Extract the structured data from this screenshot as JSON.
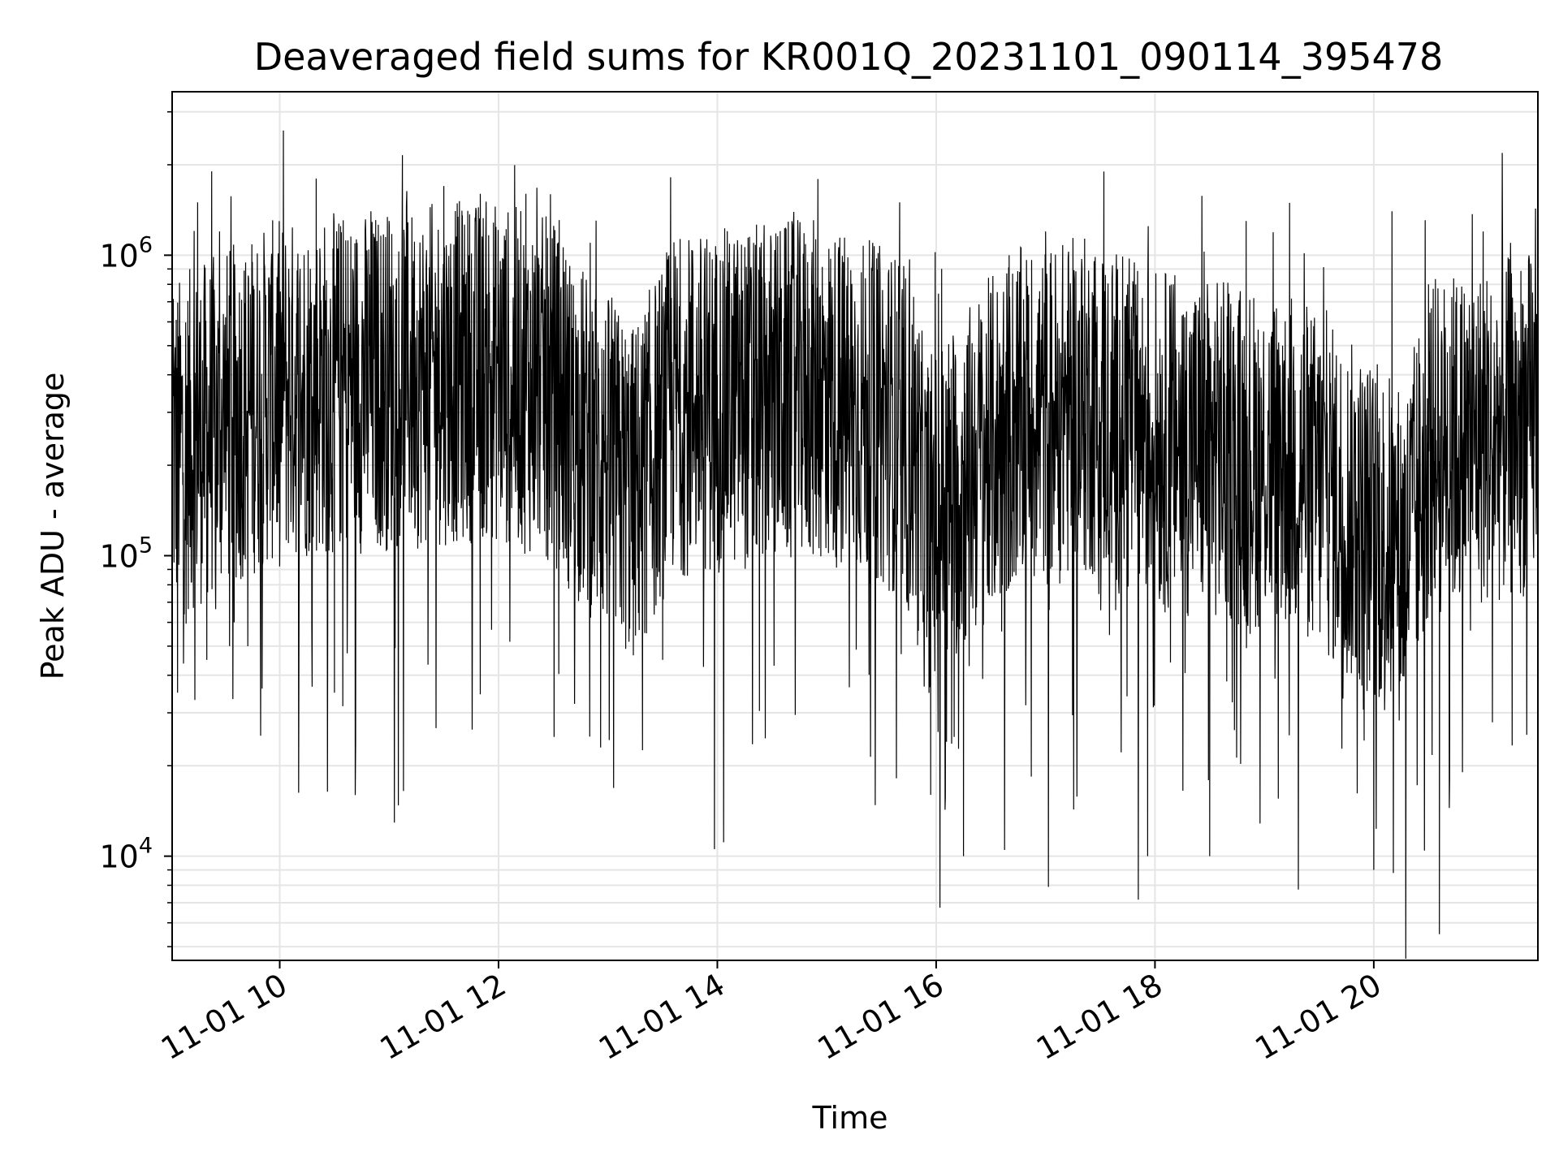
{
  "chart_data": {
    "type": "line",
    "title": "Deaveraged field sums for KR001Q_20231101_090114_395478",
    "xlabel": "Time",
    "ylabel": "Peak ADU - average",
    "yscale": "log",
    "ylim": [
      4500,
      3500000
    ],
    "xlim": [
      "2023-11-01 09:01",
      "2023-11-01 21:30"
    ],
    "grid": true,
    "line_color": "#000000",
    "grid_color": "#e5e5e5",
    "x_ticks": [
      {
        "x": "2023-11-01 10:00",
        "label": "11-01 10"
      },
      {
        "x": "2023-11-01 12:00",
        "label": "11-01 12"
      },
      {
        "x": "2023-11-01 14:00",
        "label": "11-01 14"
      },
      {
        "x": "2023-11-01 16:00",
        "label": "11-01 16"
      },
      {
        "x": "2023-11-01 18:00",
        "label": "11-01 18"
      },
      {
        "x": "2023-11-01 20:00",
        "label": "11-01 20"
      }
    ],
    "y_ticks": [
      {
        "y": 10000,
        "base": "10",
        "exp": "4"
      },
      {
        "y": 100000,
        "base": "10",
        "exp": "5"
      },
      {
        "y": 1000000,
        "base": "10",
        "exp": "6"
      }
    ],
    "series": [
      {
        "x": [
          "2023-11-01 09:01",
          "2023-11-01 09:04",
          "2023-11-01 09:10",
          "2023-11-01 09:15",
          "2023-11-01 09:20",
          "2023-11-01 09:27",
          "2023-11-01 09:35",
          "2023-11-01 09:45",
          "2023-11-01 09:55",
          "2023-11-01 10:02",
          "2023-11-01 10:10",
          "2023-11-01 10:20",
          "2023-11-01 10:30",
          "2023-11-01 10:40",
          "2023-11-01 10:50",
          "2023-11-01 11:00",
          "2023-11-01 11:15",
          "2023-11-01 11:30",
          "2023-11-01 11:40",
          "2023-11-01 11:50",
          "2023-11-01 12:00",
          "2023-11-01 12:15",
          "2023-11-01 12:28",
          "2023-11-01 12:40",
          "2023-11-01 12:50",
          "2023-11-01 12:56",
          "2023-11-01 13:05",
          "2023-11-01 13:15",
          "2023-11-01 13:30",
          "2023-11-01 13:45",
          "2023-11-01 14:00",
          "2023-11-01 14:20",
          "2023-11-01 14:40",
          "2023-11-01 15:00",
          "2023-11-01 15:20",
          "2023-11-01 15:40",
          "2023-11-01 15:50",
          "2023-11-01 15:57",
          "2023-11-01 16:03",
          "2023-11-01 16:15",
          "2023-11-01 16:25",
          "2023-11-01 16:40",
          "2023-11-01 17:00",
          "2023-11-01 17:20",
          "2023-11-01 17:32",
          "2023-11-01 17:45",
          "2023-11-01 17:56",
          "2023-11-01 18:10",
          "2023-11-01 18:30",
          "2023-11-01 18:50",
          "2023-11-01 19:10",
          "2023-11-01 19:30",
          "2023-11-01 19:50",
          "2023-11-01 20:00",
          "2023-11-01 20:10",
          "2023-11-01 20:20",
          "2023-11-01 20:30",
          "2023-11-01 20:36",
          "2023-11-01 20:45",
          "2023-11-01 21:00",
          "2023-11-01 21:15",
          "2023-11-01 21:30"
        ],
        "y": [
          1300000,
          35000,
          500000,
          1500000,
          45000,
          1200000,
          60000,
          950000,
          800000,
          2600000,
          400000,
          1800000,
          35000,
          900000,
          1400000,
          1300000,
          300000,
          1700000,
          700000,
          1600000,
          800000,
          1600000,
          500000,
          800000,
          25000,
          23000,
          600000,
          200000,
          45000,
          700000,
          400000,
          300000,
          800000,
          600000,
          500000,
          1500000,
          300000,
          16000,
          900000,
          10000,
          600000,
          1000000,
          1200000,
          900000,
          1900000,
          800000,
          10000,
          800000,
          10000,
          1300000,
          500000,
          400000,
          300000,
          9000,
          1400000,
          200000,
          800000,
          5500,
          700000,
          1200000,
          1100000,
          600000
        ]
      }
    ]
  }
}
